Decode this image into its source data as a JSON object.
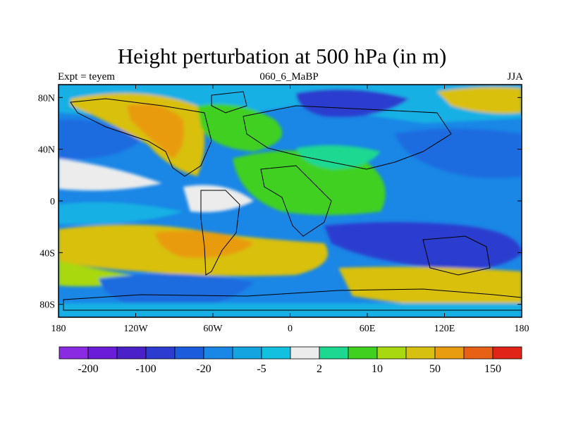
{
  "figure": {
    "title": "Height perturbation at 500 hPa (in m)",
    "left_label": "Expt = teyem",
    "center_label": "060_6_MaBP",
    "right_label": "JJA"
  },
  "axes": {
    "x_ticks": [
      {
        "value": -180,
        "label": "180"
      },
      {
        "value": -120,
        "label": "120W"
      },
      {
        "value": -60,
        "label": "60W"
      },
      {
        "value": 0,
        "label": "0"
      },
      {
        "value": 60,
        "label": "60E"
      },
      {
        "value": 120,
        "label": "120E"
      },
      {
        "value": 180,
        "label": "180"
      }
    ],
    "y_ticks": [
      {
        "value": 80,
        "label": "80N"
      },
      {
        "value": 40,
        "label": "40N"
      },
      {
        "value": 0,
        "label": "0"
      },
      {
        "value": -40,
        "label": "40S"
      },
      {
        "value": -80,
        "label": "80S"
      }
    ],
    "lon_range": [
      -180,
      180
    ],
    "lat_range": [
      -90,
      90
    ]
  },
  "colorbar": {
    "colors": [
      "#8a2be2",
      "#6a1cd8",
      "#4a20c8",
      "#2c3ccf",
      "#1a5cdc",
      "#1a86e6",
      "#14a4e0",
      "#14c0e0",
      "#ececec",
      "#1cd890",
      "#40d020",
      "#a8d810",
      "#d8c010",
      "#e89c10",
      "#e86014",
      "#e02418"
    ],
    "labels": [
      {
        "boundary": 1,
        "text": "-200"
      },
      {
        "boundary": 3,
        "text": "-100"
      },
      {
        "boundary": 5,
        "text": "-20"
      },
      {
        "boundary": 7,
        "text": "-5"
      },
      {
        "boundary": 9,
        "text": "2"
      },
      {
        "boundary": 11,
        "text": "10"
      },
      {
        "boundary": 13,
        "text": "50"
      },
      {
        "boundary": 15,
        "text": "150"
      }
    ]
  },
  "field_colors": {
    "blue": "#1a6ce0",
    "dark_blue": "#2c3ccf",
    "sky": "#14b0e4",
    "white": "#ececec",
    "teal": "#1cd890",
    "green": "#40d020",
    "yellowgreen": "#a8d810",
    "gold": "#d8c010",
    "orange": "#e89c10"
  }
}
